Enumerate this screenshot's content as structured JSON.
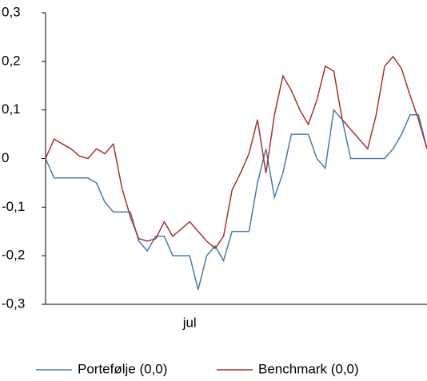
{
  "chart_data": {
    "type": "line",
    "categories": [
      null,
      null,
      null,
      null,
      null,
      null,
      null,
      null,
      null,
      null,
      null,
      null,
      null,
      null,
      null,
      null,
      null,
      "jul",
      null,
      null,
      null,
      null,
      null,
      null,
      null,
      null,
      null,
      null,
      null,
      null,
      null,
      null,
      null,
      null,
      null,
      null,
      null,
      null,
      null,
      null,
      null,
      null,
      null,
      null,
      null,
      null
    ],
    "series": [
      {
        "name": "Portefølje (0,0)",
        "color": "#4a7aa8",
        "values": [
          0,
          -0.04,
          -0.04,
          -0.04,
          -0.04,
          -0.04,
          -0.05,
          -0.09,
          -0.11,
          -0.11,
          -0.11,
          -0.17,
          -0.19,
          -0.16,
          -0.16,
          -0.2,
          -0.2,
          -0.2,
          -0.27,
          -0.2,
          -0.18,
          -0.21,
          -0.15,
          -0.15,
          -0.15,
          -0.05,
          0.02,
          -0.08,
          -0.03,
          0.05,
          0.05,
          0.05,
          0,
          -0.02,
          0.1,
          0.08,
          0,
          0,
          0,
          0,
          0,
          0.02,
          0.05,
          0.09,
          0.09,
          0.02
        ]
      },
      {
        "name": "Benchmark (0,0)",
        "color": "#a8322d",
        "values": [
          0,
          0.04,
          0.03,
          0.02,
          0.005,
          0,
          0.02,
          0.01,
          0.03,
          -0.06,
          -0.12,
          -0.165,
          -0.17,
          -0.165,
          -0.13,
          -0.16,
          -0.145,
          -0.13,
          -0.15,
          -0.17,
          -0.185,
          -0.16,
          -0.065,
          -0.03,
          0.01,
          0.08,
          -0.03,
          0.09,
          0.17,
          0.14,
          0.1,
          0.07,
          0.12,
          0.19,
          0.18,
          0.08,
          0.06,
          0.04,
          0.02,
          0.09,
          0.19,
          0.21,
          0.185,
          0.13,
          0.08,
          0.02
        ]
      }
    ],
    "ylim": [
      -0.3,
      0.3
    ],
    "yticks": [
      {
        "value": -0.3,
        "label": "-0,3"
      },
      {
        "value": -0.2,
        "label": "-0,2"
      },
      {
        "value": -0.1,
        "label": "-0,1"
      },
      0,
      {
        "value": 0.1,
        "label": "0,1"
      },
      {
        "value": 0.2,
        "label": "0,2"
      },
      {
        "value": 0.3,
        "label": "0,3"
      }
    ],
    "legend": "bottom"
  }
}
